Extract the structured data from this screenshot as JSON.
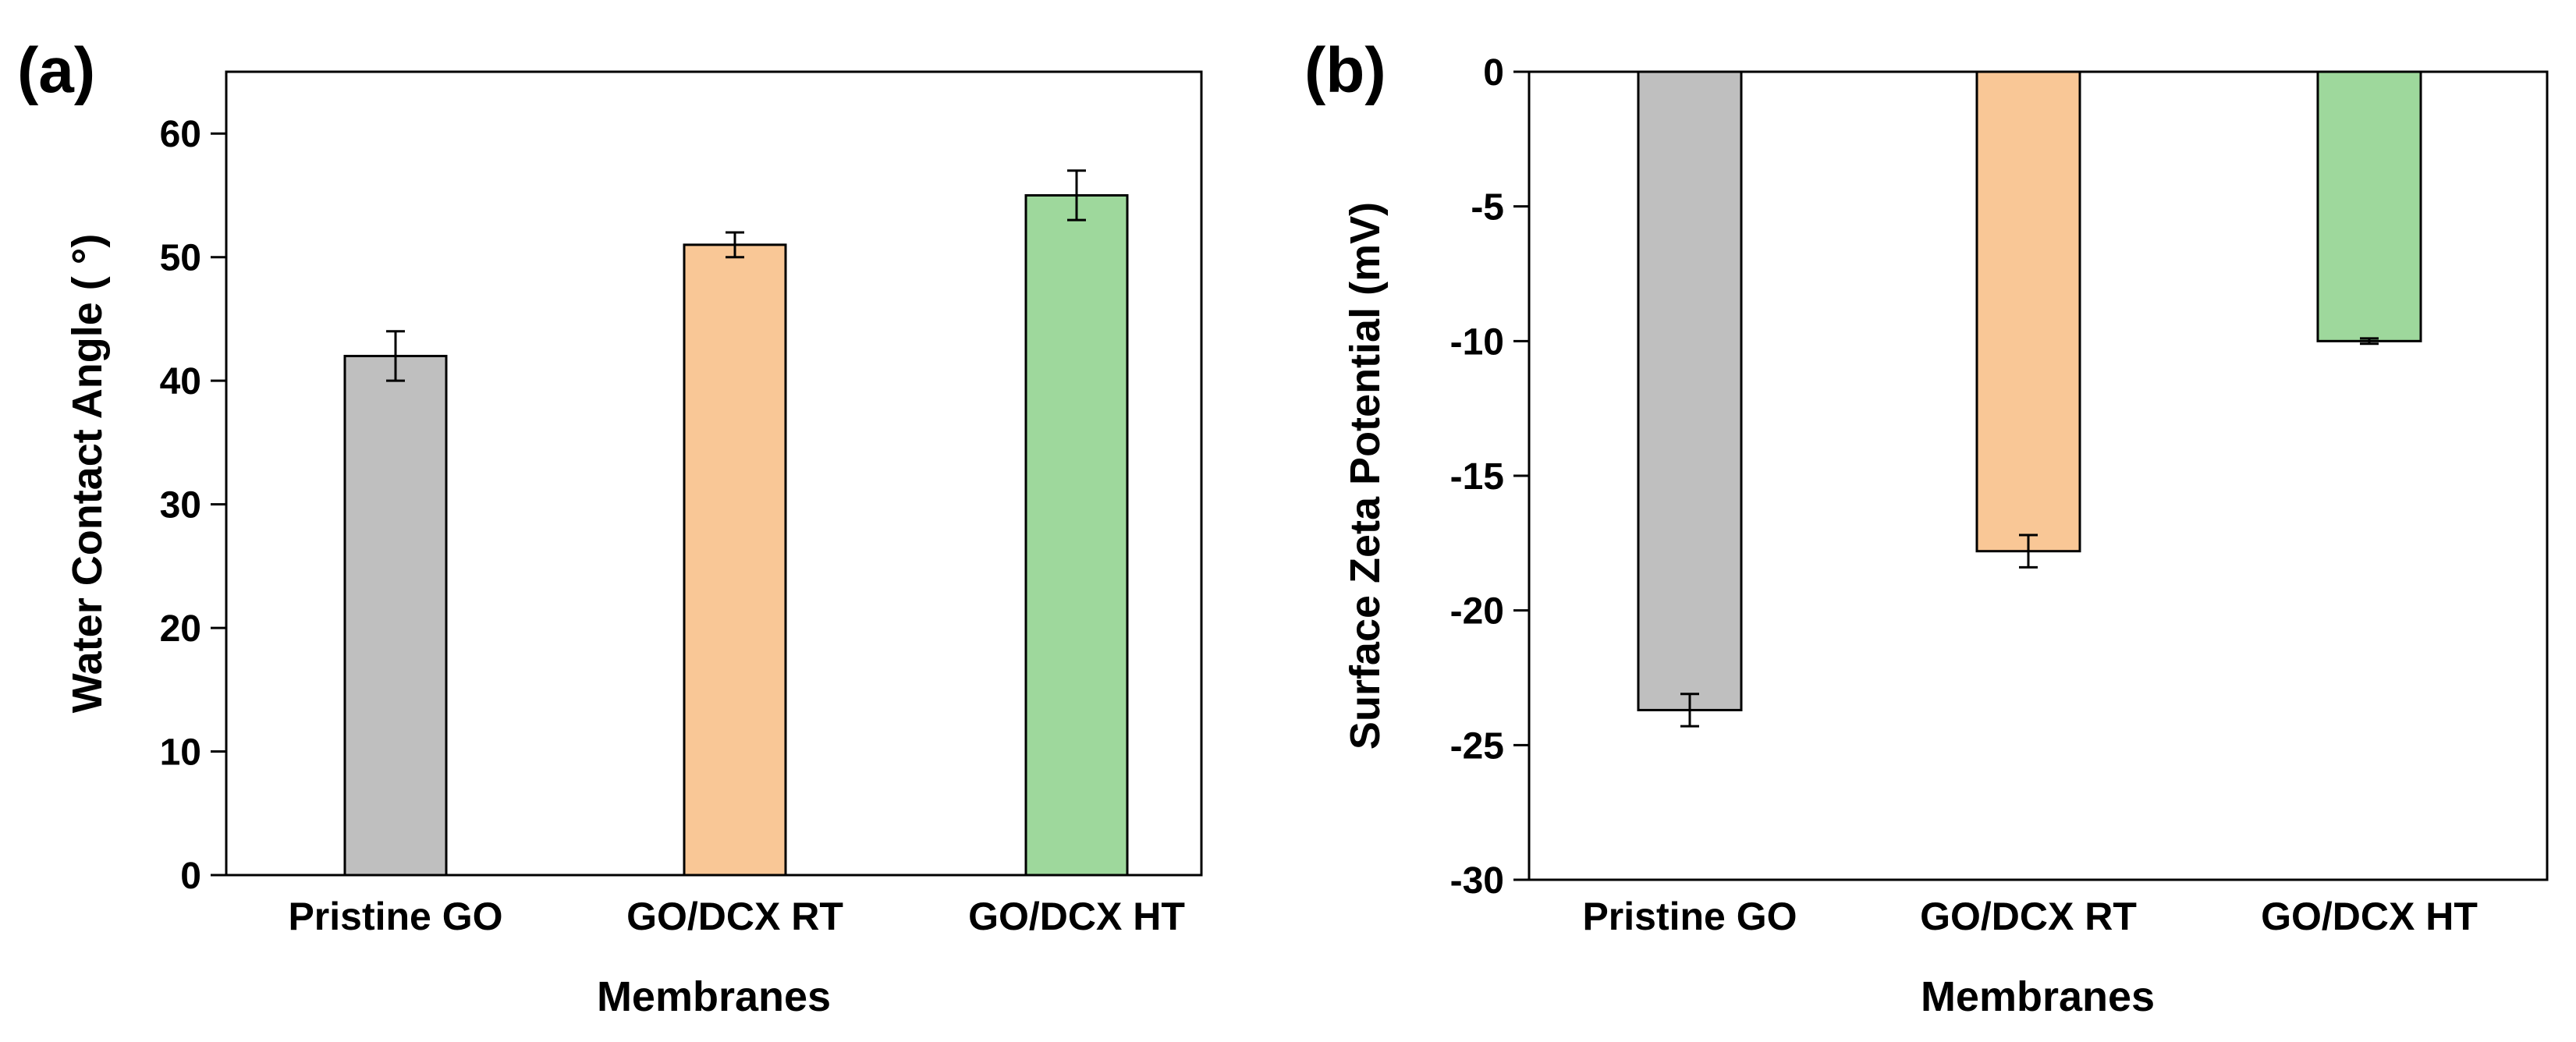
{
  "colors": {
    "pristine_go": "#bfbfbf",
    "go_dcx_rt": "#f9c796",
    "go_dcx_ht": "#9ed89c",
    "axis": "#000000",
    "background": "#ffffff"
  },
  "chart_data": [
    {
      "panel_label": "(a)",
      "type": "bar",
      "title": "",
      "xlabel": "Membranes",
      "ylabel": "Water Contact Angle ( °)",
      "categories": [
        "Pristine GO",
        "GO/DCX RT",
        "GO/DCX HT"
      ],
      "values": [
        42,
        51,
        55
      ],
      "errors": [
        2,
        1,
        2
      ],
      "ylim": [
        0,
        65
      ],
      "yticks": [
        0,
        10,
        20,
        30,
        40,
        50,
        60
      ],
      "ytick_labels": [
        "0",
        "10",
        "20",
        "30",
        "40",
        "50",
        "60"
      ],
      "grid": false
    },
    {
      "panel_label": "(b)",
      "type": "bar",
      "title": "",
      "xlabel": "Membranes",
      "ylabel": "Surface Zeta Potential (mV)",
      "categories": [
        "Pristine GO",
        "GO/DCX RT",
        "GO/DCX HT"
      ],
      "values": [
        -23.7,
        -17.8,
        -10
      ],
      "errors": [
        0.6,
        0.6,
        0.1
      ],
      "ylim": [
        -30,
        0
      ],
      "yticks": [
        0,
        -5,
        -10,
        -15,
        -20,
        -25,
        -30
      ],
      "ytick_labels": [
        "0",
        "-5",
        "-10",
        "-15",
        "-20",
        "-25",
        "-30"
      ],
      "grid": false
    }
  ]
}
